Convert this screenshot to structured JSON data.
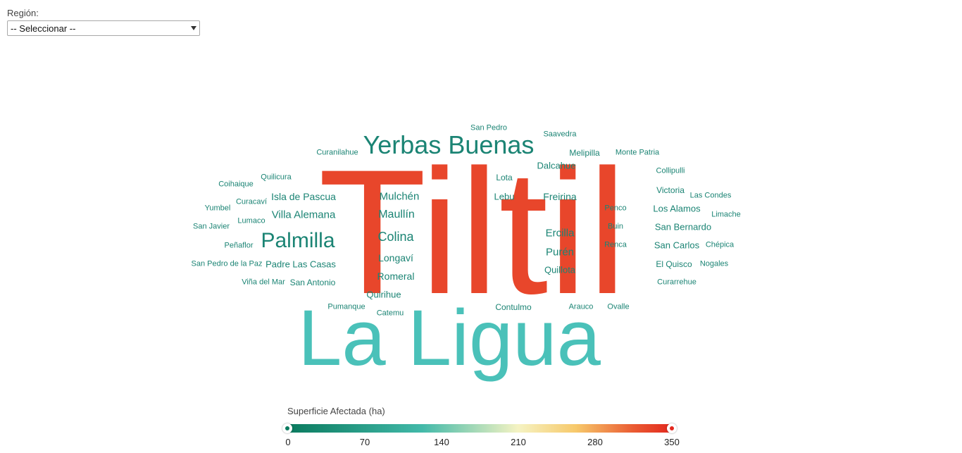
{
  "filter": {
    "label": "Región:",
    "selected": "-- Seleccionar --"
  },
  "wordcloud": {
    "words": [
      {
        "text": "Tiltil",
        "color": "#e8462b"
      },
      {
        "text": "La Ligua",
        "color": "#4ac1b9"
      },
      {
        "text": "Yerbas Buenas",
        "color": "#1b8474"
      },
      {
        "text": "Palmilla",
        "color": "#1b8474"
      },
      {
        "text": "San Pedro",
        "color": "#1b8474"
      },
      {
        "text": "Saavedra",
        "color": "#1b8474"
      },
      {
        "text": "Curanilahue",
        "color": "#1b8474"
      },
      {
        "text": "Melipilla",
        "color": "#1b8474"
      },
      {
        "text": "Monte Patria",
        "color": "#1b8474"
      },
      {
        "text": "Dalcahue",
        "color": "#1b8474"
      },
      {
        "text": "Collipulli",
        "color": "#1b8474"
      },
      {
        "text": "Quilicura",
        "color": "#1b8474"
      },
      {
        "text": "Lota",
        "color": "#1b8474"
      },
      {
        "text": "Coihaique",
        "color": "#1b8474"
      },
      {
        "text": "Victoria",
        "color": "#1b8474"
      },
      {
        "text": "Isla de Pascua",
        "color": "#1b8474"
      },
      {
        "text": "Mulchén",
        "color": "#1b8474"
      },
      {
        "text": "Lebu",
        "color": "#1b8474"
      },
      {
        "text": "Freirina",
        "color": "#1b8474"
      },
      {
        "text": "Las Condes",
        "color": "#1b8474"
      },
      {
        "text": "Curacaví",
        "color": "#1b8474"
      },
      {
        "text": "Yumbel",
        "color": "#1b8474"
      },
      {
        "text": "Villa Alemana",
        "color": "#1b8474"
      },
      {
        "text": "Maullín",
        "color": "#1b8474"
      },
      {
        "text": "Penco",
        "color": "#1b8474"
      },
      {
        "text": "Los Alamos",
        "color": "#1b8474"
      },
      {
        "text": "Limache",
        "color": "#1b8474"
      },
      {
        "text": "Lumaco",
        "color": "#1b8474"
      },
      {
        "text": "San Javier",
        "color": "#1b8474"
      },
      {
        "text": "Colina",
        "color": "#1b8474"
      },
      {
        "text": "Ercilla",
        "color": "#1b8474"
      },
      {
        "text": "Buin",
        "color": "#1b8474"
      },
      {
        "text": "San Bernardo",
        "color": "#1b8474"
      },
      {
        "text": "Peñaflor",
        "color": "#1b8474"
      },
      {
        "text": "Renca",
        "color": "#1b8474"
      },
      {
        "text": "San Carlos",
        "color": "#1b8474"
      },
      {
        "text": "Chépica",
        "color": "#1b8474"
      },
      {
        "text": "Purén",
        "color": "#1b8474"
      },
      {
        "text": "Longaví",
        "color": "#1b8474"
      },
      {
        "text": "San Pedro de la Paz",
        "color": "#1b8474"
      },
      {
        "text": "Padre Las Casas",
        "color": "#1b8474"
      },
      {
        "text": "El Quisco",
        "color": "#1b8474"
      },
      {
        "text": "Nogales",
        "color": "#1b8474"
      },
      {
        "text": "Quillota",
        "color": "#1b8474"
      },
      {
        "text": "Romeral",
        "color": "#1b8474"
      },
      {
        "text": "Viña del Mar",
        "color": "#1b8474"
      },
      {
        "text": "San Antonio",
        "color": "#1b8474"
      },
      {
        "text": "Curarrehue",
        "color": "#1b8474"
      },
      {
        "text": "Quirihue",
        "color": "#1b8474"
      },
      {
        "text": "Pumanque",
        "color": "#1b8474"
      },
      {
        "text": "Contulmo",
        "color": "#1b8474"
      },
      {
        "text": "Arauco",
        "color": "#1b8474"
      },
      {
        "text": "Ovalle",
        "color": "#1b8474"
      },
      {
        "text": "Catemu",
        "color": "#1b8474"
      }
    ]
  },
  "legend": {
    "title": "Superficie Afectada (ha)",
    "ticks": [
      "0",
      "70",
      "140",
      "210",
      "280",
      "350"
    ],
    "min_color": "#0a7a5e",
    "max_color": "#e3281e"
  }
}
